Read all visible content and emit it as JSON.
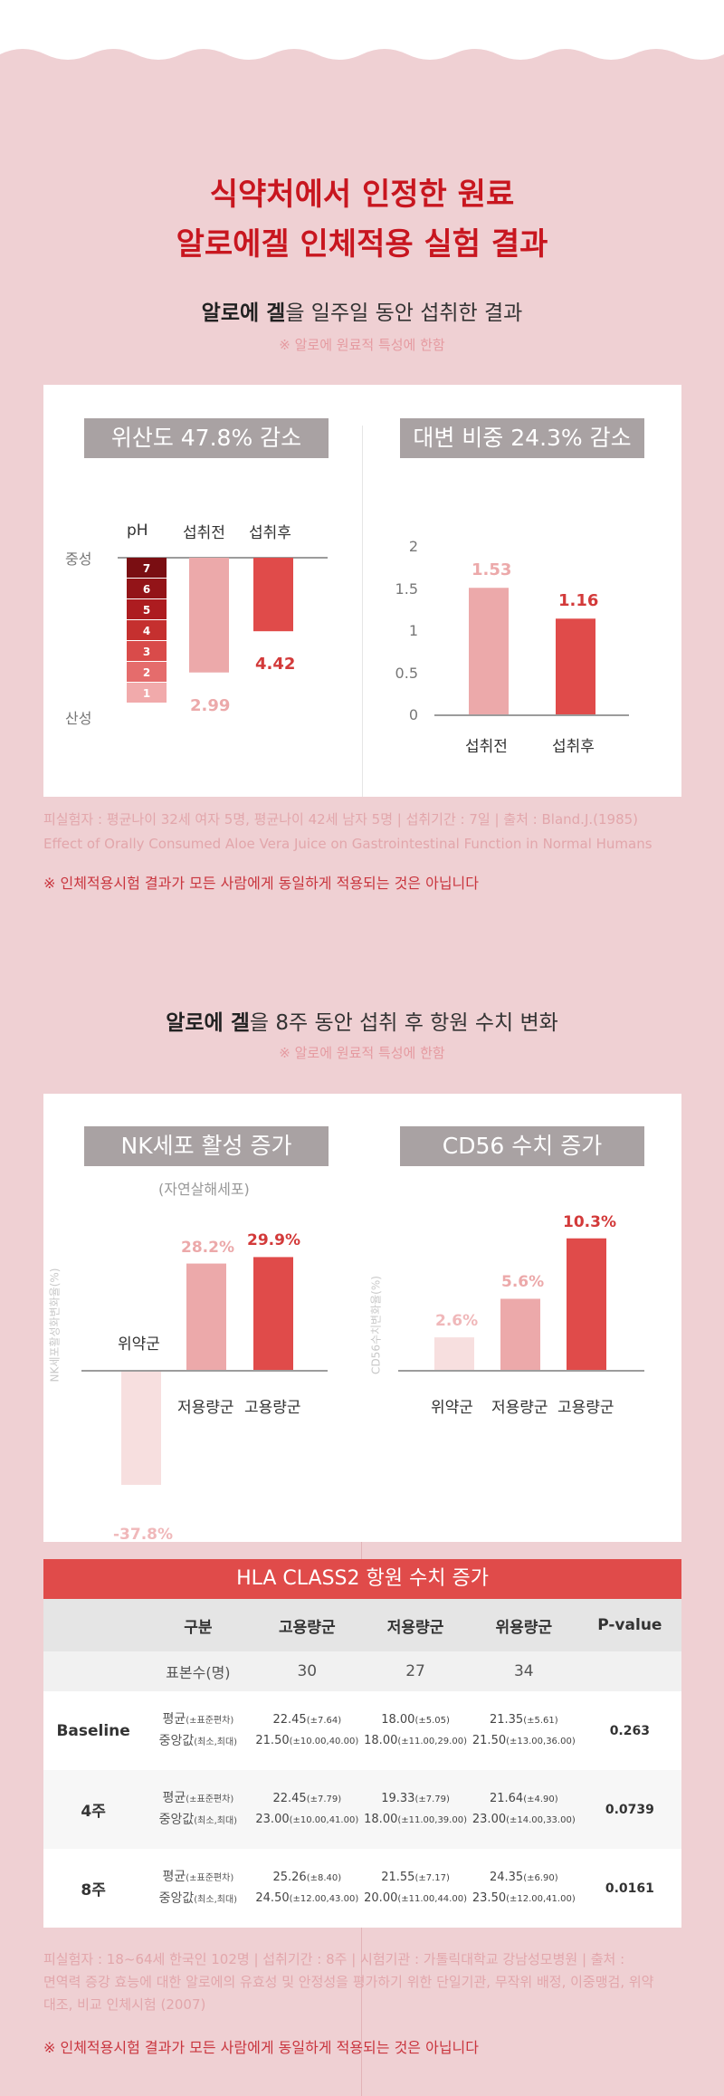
{
  "colors": {
    "background": "#efd0d3",
    "accent": "#c8161f",
    "bar_dark": "#e04b4a",
    "bar_light": "#eca9aa",
    "bar_pale": "#f7dfdf",
    "badge": "#a9a2a3"
  },
  "header": {
    "title_line1": "식약처에서 인정한 원료",
    "title_line2": "알로에겔 인체적용 실험 결과"
  },
  "section1": {
    "subtitle_bold": "알로에 겔",
    "subtitle_rest": "을 일주일 동안 섭취한 결과",
    "note": "※ 알로에 원료적 특성에 한함",
    "chart_left": {
      "badge": "위산도 47.8% 감소",
      "label_ph": "pH",
      "label_before": "섭취전",
      "label_after": "섭취후",
      "label_neutral": "중성",
      "label_acid": "산성",
      "ph_scale": [
        "7",
        "6",
        "5",
        "4",
        "3",
        "2",
        "1"
      ],
      "value_before": "2.99",
      "value_after": "4.42"
    },
    "chart_right": {
      "badge": "대변 비중 24.3% 감소",
      "y_ticks": [
        "2",
        "1.5",
        "1",
        "0.5",
        "0"
      ],
      "categories": [
        "섭취전",
        "섭취후"
      ],
      "value_labels": [
        "1.53",
        "1.16"
      ]
    },
    "footnote1": "피실험자 : 평균나이 32세 여자 5명, 평균나이 42세 남자 5명 | 섭취기간 : 7일 | 출처 : Bland.J.(1985)",
    "footnote2": "Effect of Orally Consumed Aloe Vera Juice on  Gastrointestinal  Function in Normal Humans",
    "disclaimer": "※ 인체적용시험 결과가 모든 사람에게 동일하게 적용되는 것은 아닙니다"
  },
  "section2": {
    "subtitle_bold": "알로에 겔",
    "subtitle_rest": "을 8주 동안 섭취 후 항원 수치 변화",
    "note": "※ 알로에 원료적 특성에 한함",
    "chart_left": {
      "badge": "NK세포 활성 증가",
      "sublabel": "(자연살해세포)",
      "ylabel": "NK세포활성화변화율(%)",
      "categories": [
        "위약군",
        "저용량군",
        "고용량군"
      ],
      "value_labels": [
        "-37.8%",
        "28.2%",
        "29.9%"
      ]
    },
    "chart_right": {
      "badge": "CD56 수치 증가",
      "ylabel": "CD56수치변화율(%)",
      "categories": [
        "위약군",
        "저용량군",
        "고용량군"
      ],
      "value_labels": [
        "2.6%",
        "5.6%",
        "10.3%"
      ]
    },
    "table": {
      "title": "HLA CLASS2 항원 수치 증가",
      "headers": [
        "구분",
        "고용량군",
        "저용량군",
        "위용량군",
        "P-value"
      ],
      "sample_label": "표본수(명)",
      "sample_values": [
        "30",
        "27",
        "34"
      ],
      "mean_label": "평균",
      "mean_sub": "(±표준편차)",
      "median_label": "중앙값",
      "median_sub": "(최소,최대)",
      "rows": [
        {
          "name": "Baseline",
          "means": [
            [
              "22.45",
              "(±7.64)"
            ],
            [
              "18.00",
              "(±5.05)"
            ],
            [
              "21.35",
              "(±5.61)"
            ]
          ],
          "medians": [
            [
              "21.50",
              "(±10.00,40.00)"
            ],
            [
              "18.00",
              "(±11.00,29.00)"
            ],
            [
              "21.50",
              "(±13.00,36.00)"
            ]
          ],
          "p": "0.263"
        },
        {
          "name": "4주",
          "means": [
            [
              "22.45",
              "(±7.79)"
            ],
            [
              "19.33",
              "(±7.79)"
            ],
            [
              "21.64",
              "(±4.90)"
            ]
          ],
          "medians": [
            [
              "23.00",
              "(±10.00,41.00)"
            ],
            [
              "18.00",
              "(±11.00,39.00)"
            ],
            [
              "23.00",
              "(±14.00,33.00)"
            ]
          ],
          "p": "0.0739"
        },
        {
          "name": "8주",
          "means": [
            [
              "25.26",
              "(±8.40)"
            ],
            [
              "21.55",
              "(±7.17)"
            ],
            [
              "24.35",
              "(±6.90)"
            ]
          ],
          "medians": [
            [
              "24.50",
              "(±12.00,43.00)"
            ],
            [
              "20.00",
              "(±11.00,44.00)"
            ],
            [
              "23.50",
              "(±12.00,41.00)"
            ]
          ],
          "p": "0.0161"
        }
      ]
    },
    "footnote1": "피실험자 : 18~64세 한국인 102명 | 섭취기간 : 8주 | 시험기관 : 가톨릭대학교 강남성모병원 | 출처 :",
    "footnote2": "면역력 증강 효능에 대한 알로에의 유효성 및 안정성을 평가하기 위한 단일기관, 무작위 배정, 이중맹검, 위약",
    "footnote3": "대조, 비교 인체시험 (2007)",
    "disclaimer": "※ 인체적용시험 결과가 모든 사람에게 동일하게 적용되는 것은 아닙니다"
  },
  "chart_data": [
    {
      "type": "bar",
      "title": "위산도 47.8% 감소",
      "categories": [
        "섭취전",
        "섭취후"
      ],
      "values": [
        2.99,
        4.42
      ],
      "ylabel": "pH",
      "ylim": [
        1,
        7
      ],
      "legend": "none",
      "grid": false
    },
    {
      "type": "bar",
      "title": "대변 비중 24.3% 감소",
      "categories": [
        "섭취전",
        "섭취후"
      ],
      "values": [
        1.53,
        1.16
      ],
      "ylim": [
        0,
        2
      ],
      "y_ticks": [
        0,
        0.5,
        1,
        1.5,
        2
      ],
      "legend": "none",
      "grid": false
    },
    {
      "type": "bar",
      "title": "NK세포 활성 증가",
      "subtitle": "(자연살해세포)",
      "categories": [
        "위약군",
        "저용량군",
        "고용량군"
      ],
      "values": [
        -37.8,
        28.2,
        29.9
      ],
      "ylabel": "NK세포활성화변화율(%)",
      "legend": "none",
      "grid": false
    },
    {
      "type": "bar",
      "title": "CD56 수치 증가",
      "categories": [
        "위약군",
        "저용량군",
        "고용량군"
      ],
      "values": [
        2.6,
        5.6,
        10.3
      ],
      "ylabel": "CD56수치변화율(%)",
      "legend": "none",
      "grid": false
    }
  ]
}
